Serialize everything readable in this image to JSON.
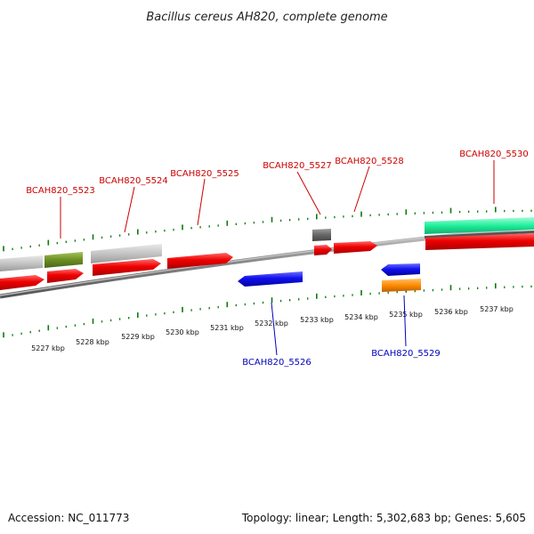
{
  "title": "Bacillus cereus AH820, complete genome",
  "footer": {
    "accession": "Accession: NC_011773",
    "topology": "Topology: linear; Length: 5,302,683 bp; Genes: 5,605"
  },
  "colors": {
    "forward_label": "#cc0000",
    "reverse_label": "#0000bb",
    "tick": "#0a7a0a",
    "backbone": "#888888"
  },
  "scale": {
    "ticks_top": [
      "5237 kbp",
      "5236 kbp",
      "5235 kbp",
      "5234 kbp",
      "5233 kbp",
      "5232 kbp",
      "5231 kbp",
      "5230 kbp",
      "5229 kbp",
      "5228 kbp",
      "5227 kbp"
    ]
  },
  "genes": [
    {
      "name": "BCAH820_5523",
      "strand": "forward",
      "color": "#ee0000"
    },
    {
      "name": "BCAH820_5524",
      "strand": "forward",
      "color": "#ee0000"
    },
    {
      "name": "BCAH820_5525",
      "strand": "forward",
      "color": "#ee0000"
    },
    {
      "name": "BCAH820_5526",
      "strand": "reverse",
      "color": "#1010ee"
    },
    {
      "name": "BCAH820_5527",
      "strand": "forward",
      "color": "#ee0000"
    },
    {
      "name": "BCAH820_5528",
      "strand": "forward",
      "color": "#ee0000"
    },
    {
      "name": "BCAH820_5529",
      "strand": "reverse",
      "color": "#1010ee"
    },
    {
      "name": "BCAH820_5530",
      "strand": "forward",
      "color": "#ee0000"
    }
  ]
}
